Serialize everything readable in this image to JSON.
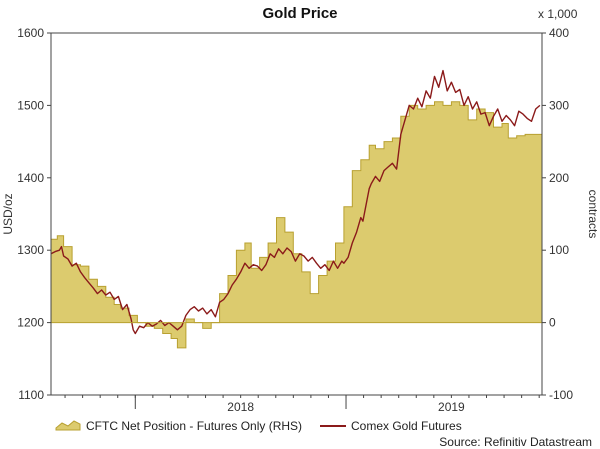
{
  "chart_data": {
    "type": "line",
    "title": "Gold Price",
    "ylabel_left": "USD/oz",
    "ylabel_right": "contracts",
    "right_multiplier": "x 1,000",
    "ylim_left": [
      1100,
      1600
    ],
    "ylim_right": [
      -100,
      400
    ],
    "xlim": [
      2017.6,
      2019.93
    ],
    "left_ticks": [
      "1100",
      "1200",
      "1300",
      "1400",
      "1500",
      "1600"
    ],
    "right_ticks": [
      "-100",
      "0",
      "100",
      "200",
      "300",
      "400"
    ],
    "x_ticks": [
      {
        "label": "2018",
        "x": 2018.0
      },
      {
        "label": "2019",
        "x": 2019.0
      }
    ],
    "grid": false,
    "legend_position": "bottom",
    "source": "Source: Refinitiv Datastream",
    "colors": {
      "area_fill": "#dccb6e",
      "area_edge": "#b8a030",
      "line": "#8b1a1a"
    },
    "series": [
      {
        "name": "CFTC Net Position - Futures Only (RHS)",
        "kind": "area",
        "axis": "right",
        "points": [
          [
            2017.6,
            115
          ],
          [
            2017.63,
            115
          ],
          [
            2017.63,
            120
          ],
          [
            2017.66,
            120
          ],
          [
            2017.66,
            105
          ],
          [
            2017.7,
            105
          ],
          [
            2017.7,
            80
          ],
          [
            2017.74,
            80
          ],
          [
            2017.74,
            78
          ],
          [
            2017.78,
            78
          ],
          [
            2017.78,
            60
          ],
          [
            2017.82,
            60
          ],
          [
            2017.82,
            50
          ],
          [
            2017.86,
            50
          ],
          [
            2017.86,
            35
          ],
          [
            2017.9,
            35
          ],
          [
            2017.9,
            25
          ],
          [
            2017.93,
            25
          ],
          [
            2017.93,
            20
          ],
          [
            2017.97,
            20
          ],
          [
            2017.97,
            10
          ],
          [
            2018.01,
            10
          ],
          [
            2018.01,
            0
          ],
          [
            2018.05,
            0
          ],
          [
            2018.05,
            -5
          ],
          [
            2018.09,
            -5
          ],
          [
            2018.09,
            -8
          ],
          [
            2018.13,
            -8
          ],
          [
            2018.13,
            -15
          ],
          [
            2018.17,
            -15
          ],
          [
            2018.17,
            -22
          ],
          [
            2018.2,
            -22
          ],
          [
            2018.2,
            -35
          ],
          [
            2018.24,
            -35
          ],
          [
            2018.24,
            5
          ],
          [
            2018.28,
            5
          ],
          [
            2018.28,
            0
          ],
          [
            2018.32,
            0
          ],
          [
            2018.32,
            -8
          ],
          [
            2018.36,
            -8
          ],
          [
            2018.36,
            0
          ],
          [
            2018.4,
            0
          ],
          [
            2018.4,
            40
          ],
          [
            2018.44,
            40
          ],
          [
            2018.44,
            65
          ],
          [
            2018.48,
            65
          ],
          [
            2018.48,
            100
          ],
          [
            2018.52,
            100
          ],
          [
            2018.52,
            110
          ],
          [
            2018.55,
            110
          ],
          [
            2018.55,
            75
          ],
          [
            2018.59,
            75
          ],
          [
            2018.59,
            90
          ],
          [
            2018.63,
            90
          ],
          [
            2018.63,
            110
          ],
          [
            2018.67,
            110
          ],
          [
            2018.67,
            145
          ],
          [
            2018.71,
            145
          ],
          [
            2018.71,
            125
          ],
          [
            2018.75,
            125
          ],
          [
            2018.75,
            95
          ],
          [
            2018.79,
            95
          ],
          [
            2018.79,
            70
          ],
          [
            2018.83,
            70
          ],
          [
            2018.83,
            40
          ],
          [
            2018.87,
            40
          ],
          [
            2018.87,
            65
          ],
          [
            2018.91,
            65
          ],
          [
            2018.91,
            85
          ],
          [
            2018.95,
            85
          ],
          [
            2018.95,
            110
          ],
          [
            2018.99,
            110
          ],
          [
            2018.99,
            160
          ],
          [
            2019.03,
            160
          ],
          [
            2019.03,
            210
          ],
          [
            2019.07,
            210
          ],
          [
            2019.07,
            225
          ],
          [
            2019.11,
            225
          ],
          [
            2019.11,
            245
          ],
          [
            2019.14,
            245
          ],
          [
            2019.14,
            240
          ],
          [
            2019.18,
            240
          ],
          [
            2019.18,
            250
          ],
          [
            2019.22,
            250
          ],
          [
            2019.22,
            255
          ],
          [
            2019.26,
            255
          ],
          [
            2019.26,
            285
          ],
          [
            2019.3,
            285
          ],
          [
            2019.3,
            300
          ],
          [
            2019.34,
            300
          ],
          [
            2019.34,
            295
          ],
          [
            2019.38,
            295
          ],
          [
            2019.38,
            300
          ],
          [
            2019.42,
            300
          ],
          [
            2019.42,
            305
          ],
          [
            2019.46,
            305
          ],
          [
            2019.46,
            300
          ],
          [
            2019.5,
            300
          ],
          [
            2019.5,
            305
          ],
          [
            2019.54,
            305
          ],
          [
            2019.54,
            300
          ],
          [
            2019.58,
            300
          ],
          [
            2019.58,
            280
          ],
          [
            2019.62,
            280
          ],
          [
            2019.62,
            295
          ],
          [
            2019.66,
            295
          ],
          [
            2019.66,
            290
          ],
          [
            2019.7,
            290
          ],
          [
            2019.7,
            270
          ],
          [
            2019.74,
            270
          ],
          [
            2019.74,
            275
          ],
          [
            2019.77,
            275
          ],
          [
            2019.77,
            255
          ],
          [
            2019.81,
            255
          ],
          [
            2019.81,
            258
          ],
          [
            2019.85,
            258
          ],
          [
            2019.85,
            260
          ],
          [
            2019.93,
            260
          ]
        ]
      },
      {
        "name": "Comex Gold Futures",
        "kind": "line",
        "axis": "left",
        "points": [
          [
            2017.6,
            1295
          ],
          [
            2017.62,
            1298
          ],
          [
            2017.64,
            1300
          ],
          [
            2017.65,
            1305
          ],
          [
            2017.66,
            1292
          ],
          [
            2017.68,
            1288
          ],
          [
            2017.7,
            1278
          ],
          [
            2017.72,
            1282
          ],
          [
            2017.74,
            1270
          ],
          [
            2017.76,
            1262
          ],
          [
            2017.78,
            1255
          ],
          [
            2017.8,
            1248
          ],
          [
            2017.82,
            1240
          ],
          [
            2017.84,
            1245
          ],
          [
            2017.86,
            1238
          ],
          [
            2017.88,
            1242
          ],
          [
            2017.9,
            1232
          ],
          [
            2017.92,
            1236
          ],
          [
            2017.94,
            1218
          ],
          [
            2017.96,
            1225
          ],
          [
            2017.98,
            1205
          ],
          [
            2017.99,
            1190
          ],
          [
            2018.0,
            1185
          ],
          [
            2018.02,
            1195
          ],
          [
            2018.04,
            1193
          ],
          [
            2018.06,
            1200
          ],
          [
            2018.08,
            1195
          ],
          [
            2018.1,
            1198
          ],
          [
            2018.12,
            1203
          ],
          [
            2018.14,
            1196
          ],
          [
            2018.16,
            1200
          ],
          [
            2018.18,
            1195
          ],
          [
            2018.2,
            1190
          ],
          [
            2018.22,
            1195
          ],
          [
            2018.24,
            1210
          ],
          [
            2018.26,
            1218
          ],
          [
            2018.28,
            1222
          ],
          [
            2018.3,
            1216
          ],
          [
            2018.32,
            1220
          ],
          [
            2018.34,
            1212
          ],
          [
            2018.36,
            1218
          ],
          [
            2018.38,
            1208
          ],
          [
            2018.4,
            1228
          ],
          [
            2018.42,
            1232
          ],
          [
            2018.44,
            1240
          ],
          [
            2018.46,
            1252
          ],
          [
            2018.48,
            1260
          ],
          [
            2018.5,
            1270
          ],
          [
            2018.52,
            1282
          ],
          [
            2018.54,
            1275
          ],
          [
            2018.56,
            1280
          ],
          [
            2018.58,
            1278
          ],
          [
            2018.6,
            1272
          ],
          [
            2018.62,
            1280
          ],
          [
            2018.64,
            1295
          ],
          [
            2018.66,
            1290
          ],
          [
            2018.68,
            1302
          ],
          [
            2018.7,
            1295
          ],
          [
            2018.72,
            1303
          ],
          [
            2018.74,
            1298
          ],
          [
            2018.76,
            1285
          ],
          [
            2018.78,
            1295
          ],
          [
            2018.8,
            1292
          ],
          [
            2018.82,
            1285
          ],
          [
            2018.84,
            1290
          ],
          [
            2018.86,
            1282
          ],
          [
            2018.88,
            1275
          ],
          [
            2018.9,
            1280
          ],
          [
            2018.92,
            1272
          ],
          [
            2018.94,
            1285
          ],
          [
            2018.96,
            1275
          ],
          [
            2018.98,
            1285
          ],
          [
            2018.99,
            1282
          ],
          [
            2019.01,
            1290
          ],
          [
            2019.03,
            1310
          ],
          [
            2019.05,
            1325
          ],
          [
            2019.07,
            1345
          ],
          [
            2019.08,
            1340
          ],
          [
            2019.1,
            1370
          ],
          [
            2019.11,
            1385
          ],
          [
            2019.12,
            1392
          ],
          [
            2019.14,
            1402
          ],
          [
            2019.16,
            1395
          ],
          [
            2019.18,
            1410
          ],
          [
            2019.2,
            1415
          ],
          [
            2019.22,
            1420
          ],
          [
            2019.24,
            1412
          ],
          [
            2019.26,
            1460
          ],
          [
            2019.28,
            1480
          ],
          [
            2019.3,
            1500
          ],
          [
            2019.32,
            1495
          ],
          [
            2019.34,
            1510
          ],
          [
            2019.36,
            1498
          ],
          [
            2019.38,
            1520
          ],
          [
            2019.4,
            1510
          ],
          [
            2019.42,
            1540
          ],
          [
            2019.44,
            1525
          ],
          [
            2019.46,
            1548
          ],
          [
            2019.48,
            1520
          ],
          [
            2019.5,
            1532
          ],
          [
            2019.52,
            1518
          ],
          [
            2019.54,
            1522
          ],
          [
            2019.56,
            1500
          ],
          [
            2019.58,
            1512
          ],
          [
            2019.6,
            1495
          ],
          [
            2019.62,
            1505
          ],
          [
            2019.64,
            1488
          ],
          [
            2019.66,
            1490
          ],
          [
            2019.68,
            1472
          ],
          [
            2019.7,
            1485
          ],
          [
            2019.72,
            1495
          ],
          [
            2019.74,
            1478
          ],
          [
            2019.76,
            1486
          ],
          [
            2019.78,
            1480
          ],
          [
            2019.8,
            1472
          ],
          [
            2019.82,
            1492
          ],
          [
            2019.84,
            1488
          ],
          [
            2019.86,
            1482
          ],
          [
            2019.88,
            1478
          ],
          [
            2019.9,
            1495
          ],
          [
            2019.92,
            1500
          ]
        ]
      }
    ]
  }
}
